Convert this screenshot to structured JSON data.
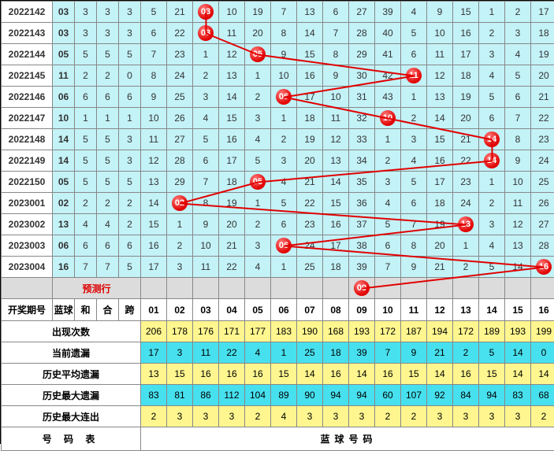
{
  "columns": {
    "period_width": 65,
    "small_width": 28,
    "num_width": 33,
    "small_count": 4,
    "num_count": 16
  },
  "colors": {
    "cell_bg": "#c3f2f7",
    "yellow_bg": "#fff68f",
    "blue_bg": "#47e0ee",
    "gray_bg": "#dcdcdc",
    "ball": "#e10000",
    "line": "#e10000",
    "blue_text": "#004cff",
    "red_text": "#d00"
  },
  "header": {
    "period": "开奖期号",
    "lan": "蓝球",
    "he": "和",
    "hex": "合",
    "kua": "跨"
  },
  "num_headers": [
    "01",
    "02",
    "03",
    "04",
    "05",
    "06",
    "07",
    "08",
    "09",
    "10",
    "11",
    "12",
    "13",
    "14",
    "15",
    "16"
  ],
  "rows": [
    {
      "period": "2022142",
      "lan": "03",
      "he": "3",
      "hex": "3",
      "kua": "3",
      "hit": 3,
      "cells": [
        "5",
        "21",
        "03",
        "10",
        "19",
        "7",
        "13",
        "6",
        "27",
        "39",
        "4",
        "9",
        "15",
        "1",
        "2",
        "17"
      ]
    },
    {
      "period": "2022143",
      "lan": "03",
      "he": "3",
      "hex": "3",
      "kua": "3",
      "hit": 3,
      "cells": [
        "6",
        "22",
        "03",
        "11",
        "20",
        "8",
        "14",
        "7",
        "28",
        "40",
        "5",
        "10",
        "16",
        "2",
        "3",
        "18"
      ]
    },
    {
      "period": "2022144",
      "lan": "05",
      "he": "5",
      "hex": "5",
      "kua": "5",
      "hit": 5,
      "cells": [
        "7",
        "23",
        "1",
        "12",
        "05",
        "9",
        "15",
        "8",
        "29",
        "41",
        "6",
        "11",
        "17",
        "3",
        "4",
        "19"
      ]
    },
    {
      "period": "2022145",
      "lan": "11",
      "he": "2",
      "hex": "2",
      "kua": "0",
      "hit": 11,
      "cells": [
        "8",
        "24",
        "2",
        "13",
        "1",
        "10",
        "16",
        "9",
        "30",
        "42",
        "11",
        "12",
        "18",
        "4",
        "5",
        "20"
      ]
    },
    {
      "period": "2022146",
      "lan": "06",
      "he": "6",
      "hex": "6",
      "kua": "6",
      "hit": 6,
      "cells": [
        "9",
        "25",
        "3",
        "14",
        "2",
        "06",
        "17",
        "10",
        "31",
        "43",
        "1",
        "13",
        "19",
        "5",
        "6",
        "21"
      ]
    },
    {
      "period": "2022147",
      "lan": "10",
      "he": "1",
      "hex": "1",
      "kua": "1",
      "hit": 10,
      "cells": [
        "10",
        "26",
        "4",
        "15",
        "3",
        "1",
        "18",
        "11",
        "32",
        "10",
        "2",
        "14",
        "20",
        "6",
        "7",
        "22"
      ]
    },
    {
      "period": "2022148",
      "lan": "14",
      "he": "5",
      "hex": "5",
      "kua": "3",
      "hit": 14,
      "cells": [
        "11",
        "27",
        "5",
        "16",
        "4",
        "2",
        "19",
        "12",
        "33",
        "1",
        "3",
        "15",
        "21",
        "14",
        "8",
        "23"
      ]
    },
    {
      "period": "2022149",
      "lan": "14",
      "he": "5",
      "hex": "5",
      "kua": "3",
      "hit": 14,
      "cells": [
        "12",
        "28",
        "6",
        "17",
        "5",
        "3",
        "20",
        "13",
        "34",
        "2",
        "4",
        "16",
        "22",
        "14",
        "9",
        "24"
      ]
    },
    {
      "period": "2022150",
      "lan": "05",
      "he": "5",
      "hex": "5",
      "kua": "5",
      "hit": 5,
      "cells": [
        "13",
        "29",
        "7",
        "18",
        "05",
        "4",
        "21",
        "14",
        "35",
        "3",
        "5",
        "17",
        "23",
        "1",
        "10",
        "25"
      ]
    },
    {
      "period": "2023001",
      "lan": "02",
      "he": "2",
      "hex": "2",
      "kua": "2",
      "hit": 2,
      "cells": [
        "14",
        "02",
        "8",
        "19",
        "1",
        "5",
        "22",
        "15",
        "36",
        "4",
        "6",
        "18",
        "24",
        "2",
        "11",
        "26"
      ]
    },
    {
      "period": "2023002",
      "lan": "13",
      "he": "4",
      "hex": "4",
      "kua": "2",
      "hit": 13,
      "cells": [
        "15",
        "1",
        "9",
        "20",
        "2",
        "6",
        "23",
        "16",
        "37",
        "5",
        "7",
        "19",
        "13",
        "3",
        "12",
        "27"
      ]
    },
    {
      "period": "2023003",
      "lan": "06",
      "he": "6",
      "hex": "6",
      "kua": "6",
      "hit": 6,
      "cells": [
        "16",
        "2",
        "10",
        "21",
        "3",
        "06",
        "24",
        "17",
        "38",
        "6",
        "8",
        "20",
        "1",
        "4",
        "13",
        "28"
      ]
    },
    {
      "period": "2023004",
      "lan": "16",
      "he": "7",
      "hex": "7",
      "kua": "5",
      "hit": 16,
      "cells": [
        "17",
        "3",
        "11",
        "22",
        "4",
        "1",
        "25",
        "18",
        "39",
        "7",
        "9",
        "21",
        "2",
        "5",
        "14",
        "16"
      ]
    }
  ],
  "predict": {
    "label": "预测行",
    "hit": 9
  },
  "stats_header": {
    "period": "开奖期号",
    "lan": "蓝球",
    "he": "和",
    "hex": "合",
    "kua": "跨",
    "title": "蓝球号码"
  },
  "stats": [
    {
      "cls": "stat-yellow",
      "label": "出现次数",
      "cells": [
        "206",
        "178",
        "176",
        "171",
        "177",
        "183",
        "190",
        "168",
        "193",
        "172",
        "187",
        "194",
        "172",
        "189",
        "193",
        "199"
      ]
    },
    {
      "cls": "stat-blue",
      "label": "当前遗漏",
      "cells": [
        "17",
        "3",
        "11",
        "22",
        "4",
        "1",
        "25",
        "18",
        "39",
        "7",
        "9",
        "21",
        "2",
        "5",
        "14",
        "0"
      ]
    },
    {
      "cls": "stat-yellow",
      "label": "历史平均遗漏",
      "cells": [
        "13",
        "15",
        "16",
        "16",
        "16",
        "15",
        "14",
        "16",
        "14",
        "16",
        "15",
        "14",
        "16",
        "15",
        "14",
        "14"
      ]
    },
    {
      "cls": "stat-blue",
      "label": "历史最大遗漏",
      "cells": [
        "83",
        "81",
        "86",
        "112",
        "104",
        "89",
        "90",
        "94",
        "94",
        "60",
        "107",
        "92",
        "84",
        "94",
        "83",
        "68"
      ]
    },
    {
      "cls": "stat-yellow",
      "label": "历史最大连出",
      "cells": [
        "2",
        "3",
        "3",
        "3",
        "2",
        "4",
        "3",
        "3",
        "3",
        "2",
        "2",
        "3",
        "3",
        "3",
        "3",
        "2"
      ]
    }
  ],
  "footer": {
    "left": "号  码  表",
    "right": "蓝球号码"
  }
}
